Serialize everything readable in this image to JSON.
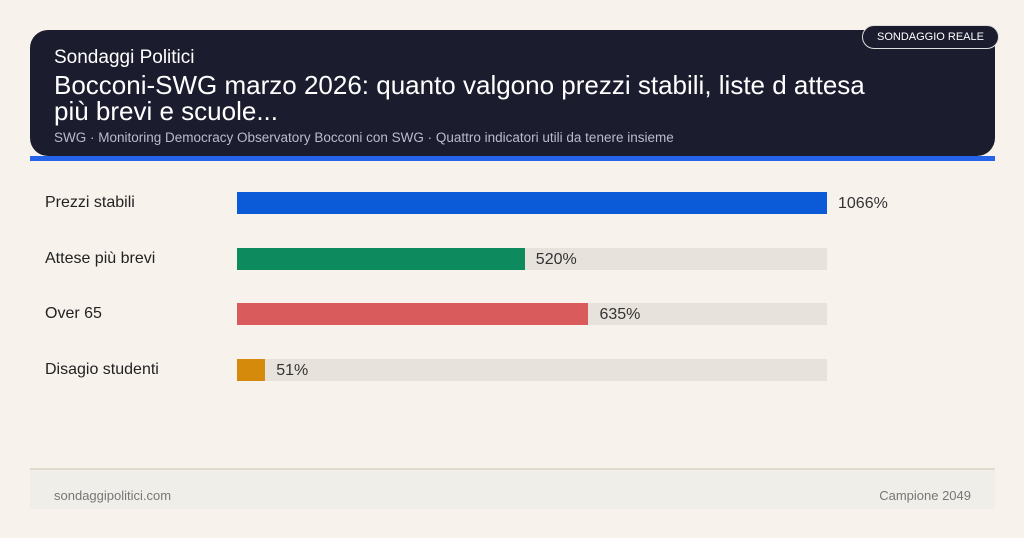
{
  "header": {
    "brand": "Sondaggi Politici",
    "title": "Bocconi-SWG marzo 2026: quanto valgono prezzi stabili, liste d attesa più brevi e scuole...",
    "subtitle": "SWG · Monitoring Democracy Observatory Bocconi con SWG · Quattro indicatori utili da tenere insieme",
    "badge": "SONDAGGIO REALE"
  },
  "chart_data": {
    "type": "bar",
    "orientation": "horizontal",
    "categories": [
      "Prezzi stabili",
      "Attese più brevi",
      "Over 65",
      "Disagio studenti"
    ],
    "values": [
      1066,
      520,
      635,
      51
    ],
    "labels": [
      "1066%",
      "520%",
      "635%",
      "51%"
    ],
    "colors": [
      "#0b5bd8",
      "#0e8a5f",
      "#d95b5b",
      "#d68a0c"
    ],
    "track_color": "#e7e2dc",
    "grid": false
  },
  "footer": {
    "left": "sondaggipolitici.com",
    "right": "Campione 2049"
  }
}
